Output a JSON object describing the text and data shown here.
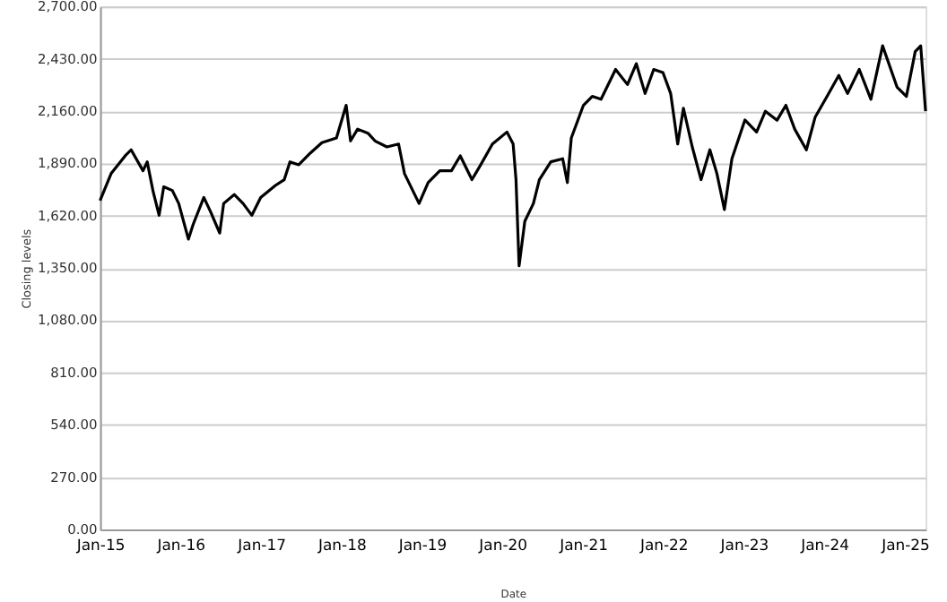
{
  "chart_data": {
    "type": "line",
    "xlabel": "Date",
    "ylabel": "Closing levels",
    "x": [
      "2015-01-01",
      "2015-02-20",
      "2015-04-25",
      "2015-05-22",
      "2015-07-15",
      "2015-08-03",
      "2015-08-30",
      "2015-09-26",
      "2015-10-17",
      "2015-11-25",
      "2015-12-24",
      "2016-02-06",
      "2016-02-28",
      "2016-04-16",
      "2016-05-18",
      "2016-06-27",
      "2016-07-15",
      "2016-09-01",
      "2016-10-11",
      "2016-11-20",
      "2016-12-30",
      "2017-03-07",
      "2017-04-16",
      "2017-05-12",
      "2017-06-21",
      "2017-08-13",
      "2017-10-04",
      "2017-12-09",
      "2018-01-22",
      "2018-02-11",
      "2018-03-15",
      "2018-05-01",
      "2018-06-02",
      "2018-07-26",
      "2018-09-17",
      "2018-10-14",
      "2018-12-19",
      "2019-01-29",
      "2019-03-23",
      "2019-05-15",
      "2019-06-24",
      "2019-08-16",
      "2019-09-25",
      "2019-11-17",
      "2020-01-22",
      "2020-02-19",
      "2020-03-03",
      "2020-03-17",
      "2020-04-12",
      "2020-05-21",
      "2020-06-17",
      "2020-08-08",
      "2020-10-01",
      "2020-10-22",
      "2020-11-09",
      "2021-01-03",
      "2021-02-12",
      "2021-03-24",
      "2021-05-29",
      "2021-07-22",
      "2021-08-31",
      "2021-10-10",
      "2021-11-18",
      "2021-12-30",
      "2022-02-03",
      "2022-03-07",
      "2022-04-02",
      "2022-05-12",
      "2022-06-21",
      "2022-07-31",
      "2022-09-01",
      "2022-10-05",
      "2022-11-08",
      "2023-01-06",
      "2023-02-28",
      "2023-04-09",
      "2023-06-01",
      "2023-07-11",
      "2023-08-20",
      "2023-10-12",
      "2023-11-21",
      "2024-01-14",
      "2024-03-07",
      "2024-04-16",
      "2024-06-08",
      "2024-07-31",
      "2024-09-22",
      "2024-11-27",
      "2025-01-08",
      "2025-02-17",
      "2025-03-14",
      "2025-04-05"
    ],
    "series": [
      {
        "color": "#000000",
        "values": [
          1698,
          1837,
          1929,
          1960,
          1852,
          1898,
          1744,
          1622,
          1769,
          1750,
          1683,
          1499,
          1576,
          1714,
          1637,
          1530,
          1683,
          1729,
          1683,
          1622,
          1714,
          1776,
          1806,
          1898,
          1883,
          1944,
          1997,
          2021,
          2190,
          2006,
          2067,
          2046,
          2006,
          1975,
          1990,
          1837,
          1683,
          1791,
          1852,
          1852,
          1929,
          1806,
          1883,
          1990,
          2052,
          1990,
          1806,
          1361,
          1591,
          1683,
          1806,
          1898,
          1914,
          1791,
          2021,
          2190,
          2236,
          2221,
          2375,
          2297,
          2405,
          2251,
          2375,
          2359,
          2251,
          1990,
          2175,
          1975,
          1806,
          1960,
          1837,
          1652,
          1914,
          2114,
          2052,
          2159,
          2113,
          2190,
          2067,
          1960,
          2129,
          2236,
          2344,
          2251,
          2375,
          2221,
          2497,
          2283,
          2236,
          2467,
          2497,
          2159
        ]
      }
    ],
    "xlim": [
      "2015-01-01",
      "2025-04-05"
    ],
    "xticks": [
      {
        "value": "2015-01-01",
        "label": "Jan-15"
      },
      {
        "value": "2016-01-01",
        "label": "Jan-16"
      },
      {
        "value": "2017-01-01",
        "label": "Jan-17"
      },
      {
        "value": "2018-01-01",
        "label": "Jan-18"
      },
      {
        "value": "2019-01-01",
        "label": "Jan-19"
      },
      {
        "value": "2020-01-01",
        "label": "Jan-20"
      },
      {
        "value": "2021-01-01",
        "label": "Jan-21"
      },
      {
        "value": "2022-01-01",
        "label": "Jan-22"
      },
      {
        "value": "2023-01-01",
        "label": "Jan-23"
      },
      {
        "value": "2024-01-01",
        "label": "Jan-24"
      },
      {
        "value": "2025-01-01",
        "label": "Jan-25"
      }
    ],
    "ylim": [
      0,
      2700
    ],
    "yticks": [
      {
        "value": 0,
        "label": "0.00"
      },
      {
        "value": 270,
        "label": "270.00"
      },
      {
        "value": 540,
        "label": "540.00"
      },
      {
        "value": 810,
        "label": "810.00"
      },
      {
        "value": 1080,
        "label": "1,080.00"
      },
      {
        "value": 1350,
        "label": "1,350.00"
      },
      {
        "value": 1620,
        "label": "1,620.00"
      },
      {
        "value": 1890,
        "label": "1,890.00"
      },
      {
        "value": 2160,
        "label": "2,160.00"
      },
      {
        "value": 2430,
        "label": "2,430.00"
      },
      {
        "value": 2700,
        "label": "2,700.00"
      }
    ],
    "grid": "y",
    "marker": "none",
    "line_style": "solid"
  }
}
